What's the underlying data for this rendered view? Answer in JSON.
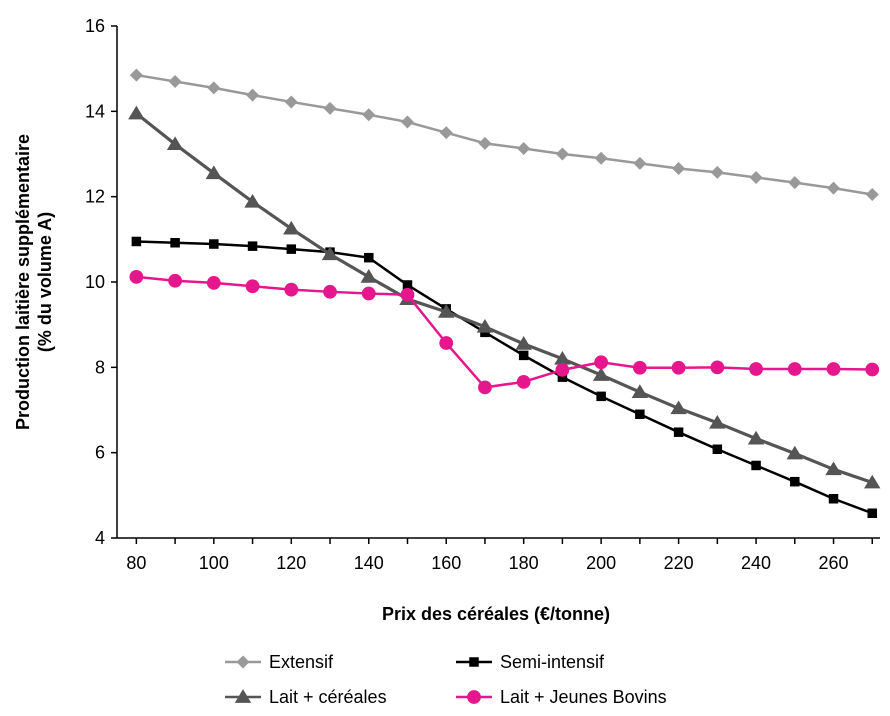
{
  "chart_data": {
    "type": "line",
    "title": "",
    "xlabel": "Prix des céréales (€/tonne)",
    "ylabel_lines": [
      "Production laitière supplémentaire",
      "(% du volume A)"
    ],
    "xlim": [
      75,
      272
    ],
    "ylim": [
      4,
      16
    ],
    "x_ticks": [
      80,
      100,
      120,
      140,
      160,
      180,
      200,
      220,
      240,
      260
    ],
    "y_ticks": [
      4,
      6,
      8,
      10,
      12,
      14,
      16
    ],
    "grid": false,
    "legend_position": "bottom",
    "x": [
      80,
      90,
      100,
      110,
      120,
      130,
      140,
      150,
      160,
      170,
      180,
      190,
      200,
      210,
      220,
      230,
      240,
      250,
      260,
      270
    ],
    "series": [
      {
        "name": "Extensif",
        "color": "#999999",
        "marker": "diamond",
        "values": [
          14.85,
          14.7,
          14.55,
          14.38,
          14.22,
          14.07,
          13.92,
          13.75,
          13.5,
          13.25,
          13.13,
          13.0,
          12.9,
          12.78,
          12.66,
          12.57,
          12.45,
          12.33,
          12.2,
          12.05
        ]
      },
      {
        "name": "Semi-intensif",
        "color": "#000000",
        "marker": "square",
        "values": [
          10.95,
          10.92,
          10.89,
          10.84,
          10.77,
          10.7,
          10.57,
          9.93,
          9.37,
          8.82,
          8.28,
          7.77,
          7.32,
          6.9,
          6.48,
          6.08,
          5.7,
          5.32,
          4.92,
          4.58
        ]
      },
      {
        "name": "Lait + céréales",
        "color": "#555555",
        "marker": "triangle",
        "values": [
          13.95,
          13.23,
          12.55,
          11.88,
          11.25,
          10.65,
          10.12,
          9.6,
          9.3,
          8.95,
          8.55,
          8.2,
          7.82,
          7.42,
          7.04,
          6.7,
          6.33,
          5.98,
          5.61,
          5.3
        ]
      },
      {
        "name": "Lait + Jeunes Bovins",
        "color": "#e6168c",
        "marker": "circle",
        "values": [
          10.12,
          10.03,
          9.98,
          9.9,
          9.82,
          9.77,
          9.73,
          9.7,
          8.57,
          7.53,
          7.66,
          7.94,
          8.12,
          7.99,
          7.99,
          8.0,
          7.96,
          7.96,
          7.96,
          7.95
        ]
      }
    ],
    "legend": [
      {
        "label": "Extensif",
        "series": 0
      },
      {
        "label": "Semi-intensif",
        "series": 1
      },
      {
        "label": "Lait + céréales",
        "series": 2
      },
      {
        "label": "Lait + Jeunes Bovins",
        "series": 3
      }
    ]
  }
}
